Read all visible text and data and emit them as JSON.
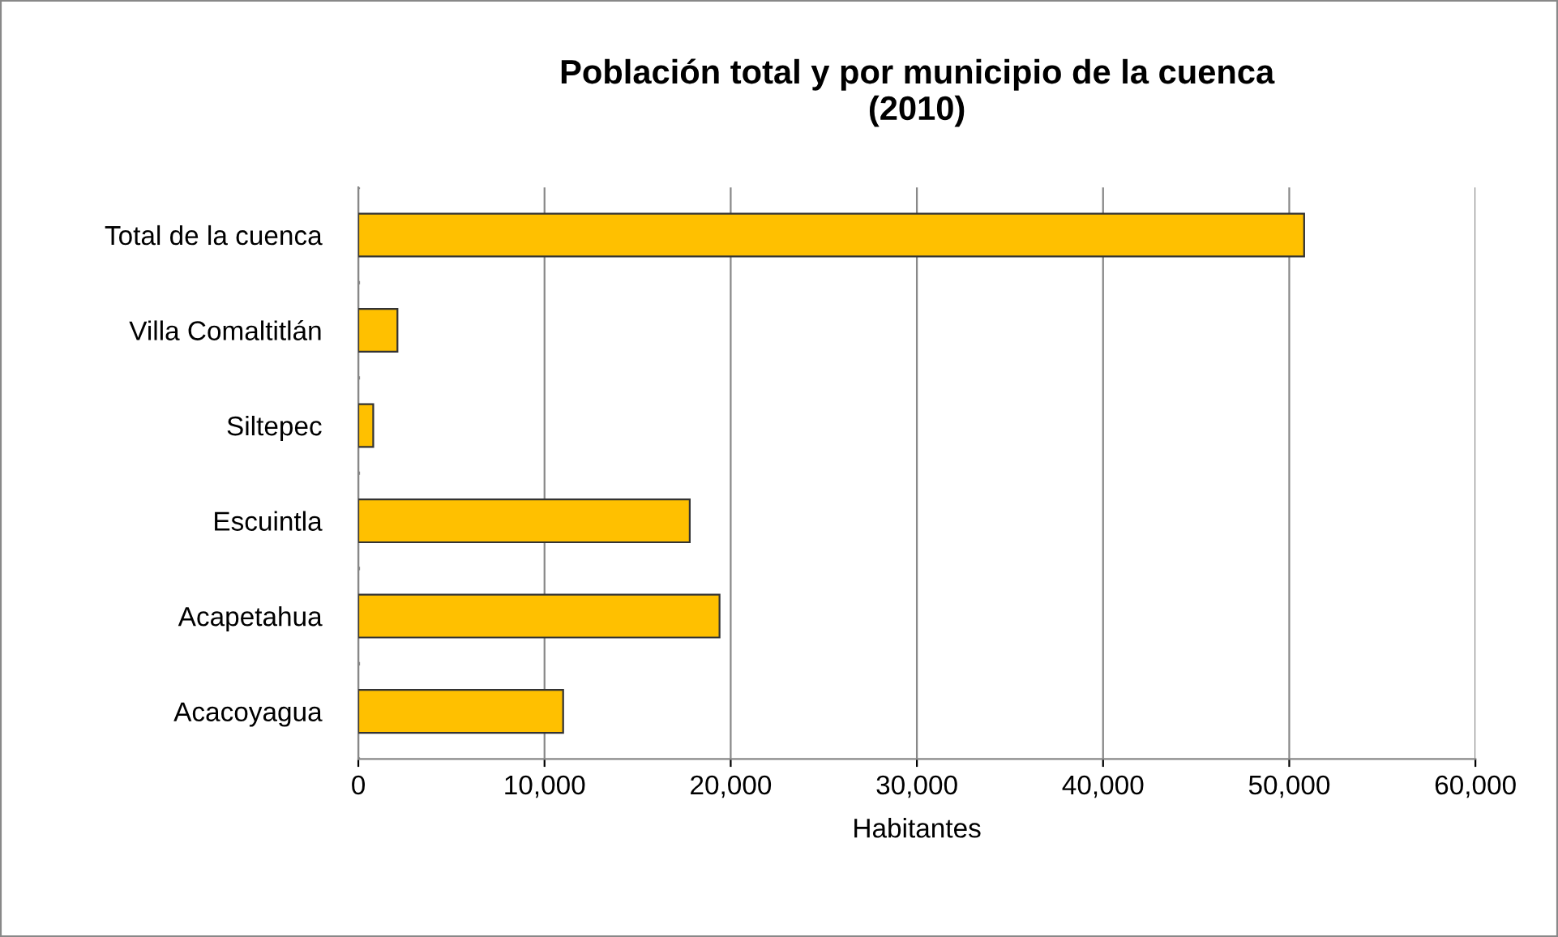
{
  "chart_data": {
    "type": "bar",
    "orientation": "horizontal",
    "title": "Población total y por municipio de la cuenca\n(2010)",
    "xlabel": "Habitantes",
    "categories": [
      "Total de la cuenca",
      "Villa Comaltitlán",
      "Siltepec",
      "Escuintla",
      "Acapetahua",
      "Acacoyagua"
    ],
    "values": [
      50800,
      2100,
      800,
      17800,
      19400,
      11000
    ],
    "color": "#ffc000",
    "xlim": [
      0,
      60000
    ],
    "xticks": [
      {
        "value": 0,
        "label": "0"
      },
      {
        "value": 10000,
        "label": "10,000"
      },
      {
        "value": 20000,
        "label": "20,000"
      },
      {
        "value": 30000,
        "label": "30,000"
      },
      {
        "value": 40000,
        "label": "40,000"
      },
      {
        "value": 50000,
        "label": "50,000"
      },
      {
        "value": 60000,
        "label": "60,000"
      }
    ],
    "grid": "x",
    "legend": false
  }
}
